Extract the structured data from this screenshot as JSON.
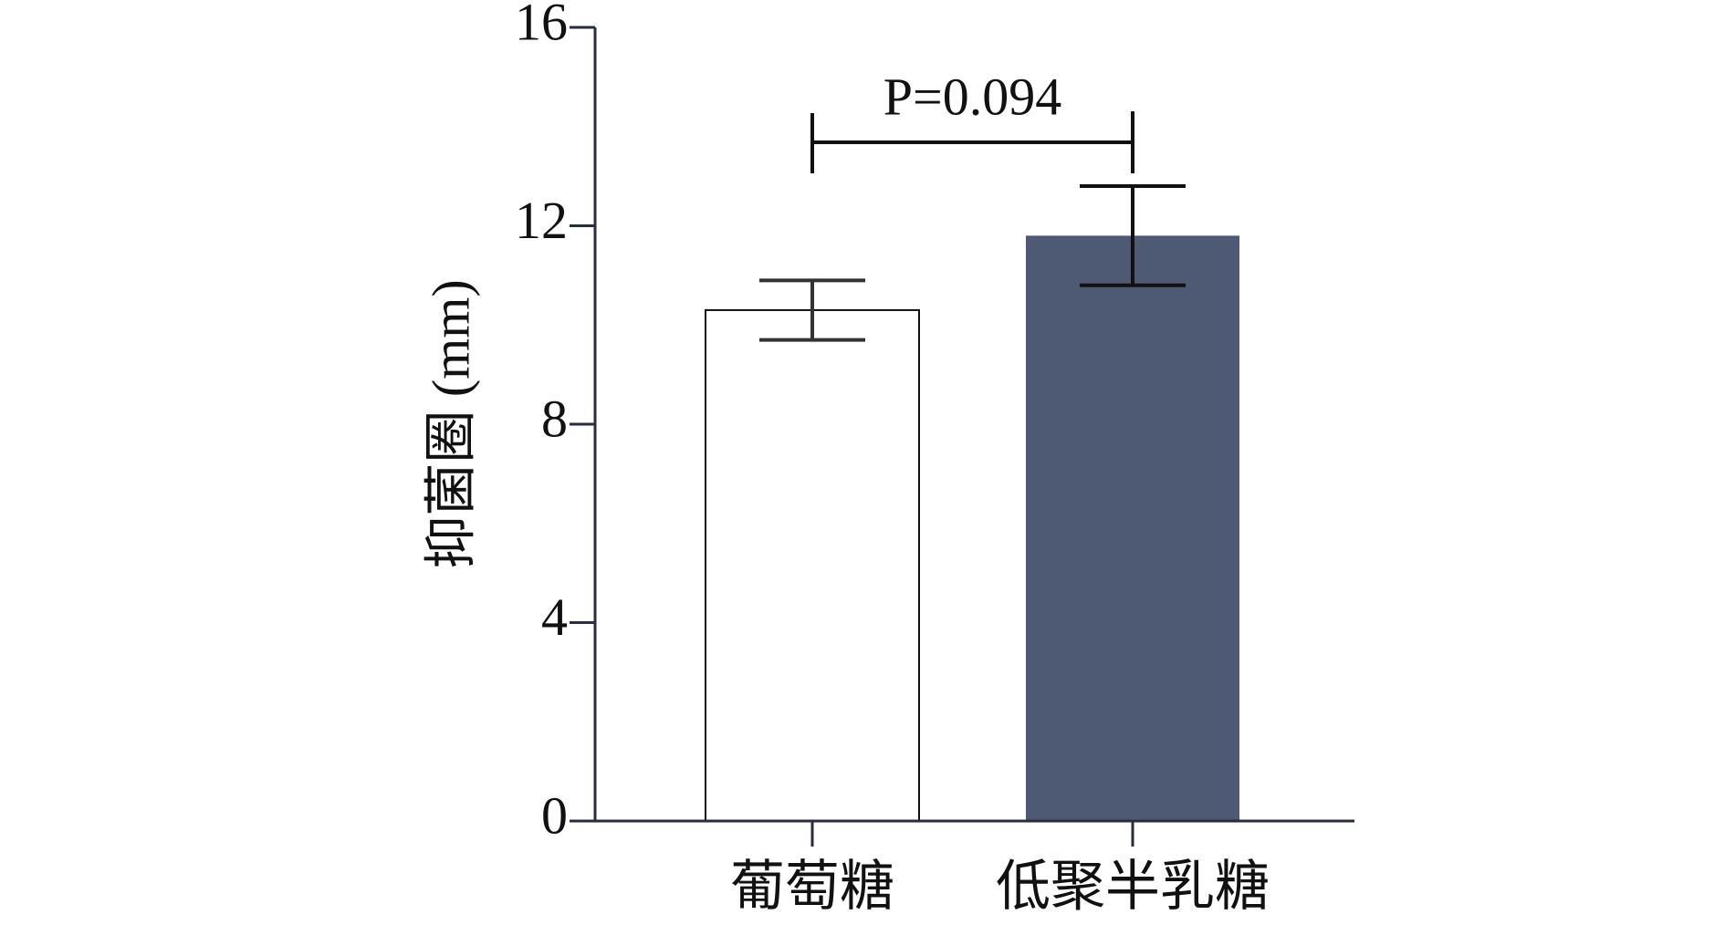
{
  "chart_data": {
    "type": "bar",
    "y_label": "抑菌圈 (mm)",
    "categories": [
      "葡萄糖",
      "低聚半乳糖"
    ],
    "values": [
      10.3,
      11.8
    ],
    "errors": [
      0.6,
      1.0
    ],
    "colors": [
      "#ffffff",
      "#4e5a73"
    ],
    "annotation": "P=0.094",
    "ylim": [
      0,
      16
    ],
    "yticks": [
      0,
      4,
      8,
      12,
      16
    ]
  }
}
